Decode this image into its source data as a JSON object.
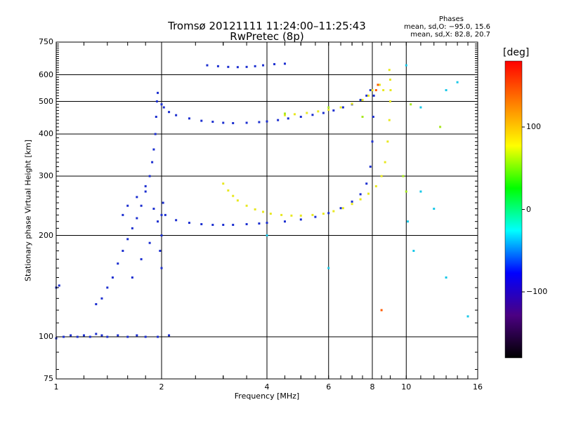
{
  "chart_data": {
    "type": "scatter",
    "title": "Tromsø 20121111 11:24:00–11:25:43",
    "subtitle": "RwPretec (8p)",
    "xlabel": "Frequency [MHz]",
    "ylabel": "Stationary phase Virtual Height [km]",
    "x_scale": "log",
    "y_scale": "log",
    "xlim": [
      1,
      16
    ],
    "ylim": [
      75,
      750
    ],
    "x_ticks": [
      1,
      2,
      4,
      6,
      8,
      10,
      16
    ],
    "x_tick_labels": [
      "1",
      "2",
      "4",
      "6",
      "8",
      "10",
      "16"
    ],
    "y_ticks": [
      75,
      100,
      200,
      300,
      400,
      500,
      600,
      750
    ],
    "y_tick_labels": [
      "75",
      "100",
      "200",
      "300",
      "400",
      "500",
      "600",
      "750"
    ],
    "grid": true,
    "stats": {
      "header": "Phases",
      "line1": "mean, sd,O: −95.0, 15.6",
      "line2": "mean, sd,X:  82.8, 20.7"
    },
    "colorbar": {
      "label": "[deg]",
      "range": [
        -180,
        180
      ],
      "ticks": [
        100,
        0,
        -100
      ],
      "tick_labels": [
        "100",
        "0",
        "−100"
      ],
      "colors": [
        "#ff0000",
        "#ff8000",
        "#ffff00",
        "#00ff00",
        "#00ffff",
        "#0000ff",
        "#4b0082",
        "#000000"
      ]
    },
    "series": [
      {
        "points": [
          [
            1.0,
            99
          ],
          [
            1.05,
            100
          ],
          [
            1.1,
            101
          ],
          [
            1.15,
            100
          ],
          [
            1.2,
            101
          ],
          [
            1.25,
            100
          ],
          [
            1.3,
            102
          ],
          [
            1.35,
            101
          ],
          [
            1.4,
            100
          ],
          [
            1.5,
            101
          ],
          [
            1.6,
            100
          ],
          [
            1.7,
            101
          ],
          [
            1.8,
            100
          ],
          [
            1.95,
            100
          ],
          [
            2.1,
            101
          ],
          [
            1.0,
            140
          ],
          [
            1.02,
            142
          ],
          [
            1.3,
            125
          ],
          [
            1.35,
            130
          ],
          [
            1.4,
            140
          ],
          [
            1.45,
            150
          ],
          [
            1.5,
            165
          ],
          [
            1.55,
            180
          ],
          [
            1.6,
            195
          ],
          [
            1.65,
            210
          ],
          [
            1.7,
            225
          ],
          [
            1.75,
            245
          ],
          [
            1.8,
            270
          ],
          [
            1.85,
            300
          ],
          [
            1.88,
            330
          ],
          [
            1.9,
            360
          ],
          [
            1.92,
            400
          ],
          [
            1.93,
            450
          ],
          [
            1.94,
            500
          ],
          [
            1.95,
            530
          ],
          [
            1.55,
            230
          ],
          [
            1.6,
            245
          ],
          [
            1.7,
            260
          ],
          [
            1.8,
            280
          ],
          [
            1.9,
            240
          ],
          [
            1.95,
            220
          ],
          [
            2.0,
            200
          ],
          [
            1.98,
            180
          ],
          [
            2.0,
            160
          ],
          [
            2.05,
            230
          ],
          [
            2.02,
            250
          ],
          [
            1.65,
            150
          ],
          [
            1.75,
            170
          ],
          [
            1.85,
            190
          ],
          [
            2.0,
            490
          ],
          [
            2.03,
            480
          ],
          [
            2.1,
            465
          ],
          [
            2.2,
            455
          ],
          [
            2.4,
            445
          ],
          [
            2.6,
            438
          ],
          [
            2.8,
            435
          ],
          [
            3.0,
            432
          ],
          [
            3.2,
            431
          ],
          [
            3.5,
            432
          ],
          [
            3.8,
            434
          ],
          [
            4.0,
            436
          ],
          [
            4.3,
            440
          ],
          [
            4.6,
            445
          ],
          [
            5.0,
            450
          ],
          [
            5.4,
            456
          ],
          [
            5.8,
            462
          ],
          [
            6.2,
            470
          ],
          [
            6.6,
            480
          ],
          [
            7.0,
            490
          ],
          [
            7.4,
            505
          ],
          [
            7.7,
            520
          ],
          [
            7.9,
            540
          ],
          [
            2.0,
            230
          ],
          [
            2.2,
            222
          ],
          [
            2.4,
            218
          ],
          [
            2.6,
            216
          ],
          [
            2.8,
            215
          ],
          [
            3.0,
            215
          ],
          [
            3.2,
            215
          ],
          [
            3.5,
            216
          ],
          [
            3.8,
            217
          ],
          [
            4.0,
            218
          ],
          [
            4.5,
            220
          ],
          [
            5.0,
            223
          ],
          [
            5.5,
            227
          ],
          [
            6.0,
            233
          ],
          [
            6.5,
            241
          ],
          [
            7.0,
            252
          ],
          [
            7.4,
            265
          ],
          [
            7.7,
            285
          ],
          [
            7.9,
            320
          ],
          [
            8.0,
            380
          ],
          [
            8.05,
            450
          ],
          [
            8.08,
            520
          ],
          [
            2.7,
            640
          ],
          [
            2.9,
            636
          ],
          [
            3.1,
            633
          ],
          [
            3.3,
            632
          ],
          [
            3.5,
            633
          ],
          [
            3.7,
            636
          ],
          [
            3.9,
            640
          ],
          [
            4.2,
            645
          ],
          [
            4.5,
            647
          ]
        ],
        "color": "#1c2fd0"
      },
      {
        "points": [
          [
            3.0,
            285
          ],
          [
            3.1,
            272
          ],
          [
            3.2,
            262
          ],
          [
            3.3,
            254
          ],
          [
            3.5,
            245
          ],
          [
            3.7,
            239
          ],
          [
            3.9,
            235
          ],
          [
            4.1,
            232
          ],
          [
            4.4,
            230
          ],
          [
            4.7,
            229
          ],
          [
            5.0,
            229
          ],
          [
            5.4,
            230
          ],
          [
            5.8,
            232
          ],
          [
            6.2,
            236
          ],
          [
            6.6,
            241
          ],
          [
            7.0,
            248
          ],
          [
            7.4,
            256
          ],
          [
            7.8,
            266
          ],
          [
            8.2,
            280
          ],
          [
            8.5,
            300
          ],
          [
            8.7,
            330
          ],
          [
            8.85,
            380
          ],
          [
            8.95,
            440
          ],
          [
            9.0,
            500
          ],
          [
            9.02,
            540
          ],
          [
            9.0,
            580
          ],
          [
            8.95,
            620
          ],
          [
            4.5,
            455
          ],
          [
            4.8,
            458
          ],
          [
            5.2,
            462
          ],
          [
            5.6,
            467
          ],
          [
            6.0,
            472
          ],
          [
            6.5,
            480
          ],
          [
            7.0,
            492
          ],
          [
            7.5,
            505
          ],
          [
            7.8,
            520
          ],
          [
            8.0,
            540
          ],
          [
            8.4,
            560
          ],
          [
            8.6,
            540
          ]
        ],
        "color": "#e8e820"
      },
      {
        "points": [
          [
            10.0,
            640
          ],
          [
            11.0,
            480
          ],
          [
            13.0,
            540
          ],
          [
            14.0,
            570
          ],
          [
            11.0,
            270
          ],
          [
            12.0,
            240
          ],
          [
            10.1,
            220
          ],
          [
            10.5,
            180
          ],
          [
            13.0,
            150
          ],
          [
            15.0,
            115
          ],
          [
            4.0,
            200
          ],
          [
            6.0,
            160
          ]
        ],
        "color": "#18c8e8"
      },
      {
        "points": [
          [
            10.0,
            270
          ],
          [
            9.8,
            300
          ],
          [
            6.0,
            480
          ],
          [
            7.5,
            450
          ],
          [
            4.5,
            460
          ],
          [
            10.3,
            490
          ],
          [
            12.5,
            420
          ]
        ],
        "color": "#a8e820"
      },
      {
        "points": [
          [
            8.2,
            540
          ],
          [
            8.3,
            560
          ],
          [
            8.5,
            120
          ]
        ],
        "color": "#ff5a00"
      }
    ]
  }
}
